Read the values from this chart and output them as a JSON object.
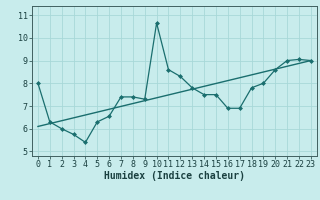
{
  "xlabel": "Humidex (Indice chaleur)",
  "bg_color": "#c8ecec",
  "line_color": "#1a6e6e",
  "grid_color": "#a8d8d8",
  "xlim": [
    -0.5,
    23.5
  ],
  "ylim": [
    4.8,
    11.4
  ],
  "yticks": [
    5,
    6,
    7,
    8,
    9,
    10,
    11
  ],
  "xticks": [
    0,
    1,
    2,
    3,
    4,
    5,
    6,
    7,
    8,
    9,
    10,
    11,
    12,
    13,
    14,
    15,
    16,
    17,
    18,
    19,
    20,
    21,
    22,
    23
  ],
  "curve_x": [
    0,
    1,
    2,
    3,
    4,
    5,
    6,
    7,
    8,
    9,
    10,
    11,
    12,
    13,
    14,
    15,
    16,
    17,
    18,
    19,
    20,
    21,
    22,
    23
  ],
  "curve_y": [
    8.0,
    6.3,
    6.0,
    5.75,
    5.4,
    6.3,
    6.55,
    7.4,
    7.4,
    7.3,
    10.65,
    8.6,
    8.3,
    7.8,
    7.5,
    7.5,
    6.9,
    6.9,
    7.8,
    8.0,
    8.6,
    9.0,
    9.05,
    9.0
  ],
  "trend_x": [
    0,
    23
  ],
  "trend_y": [
    6.1,
    9.0
  ],
  "label_fontsize": 7,
  "tick_fontsize": 6
}
